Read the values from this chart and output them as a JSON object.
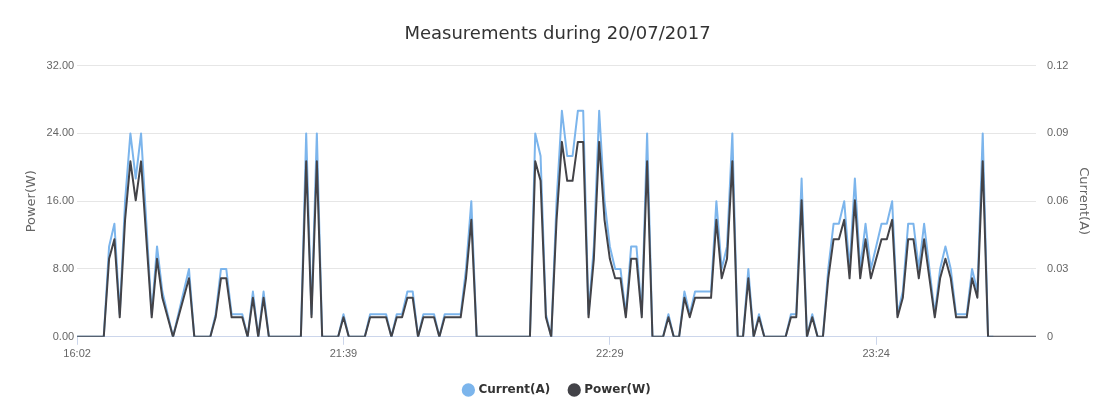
{
  "chart_data": {
    "type": "line",
    "title": "Measurements during 20/07/2017",
    "ylabel": "Power(W)",
    "y2label": "Current(A)",
    "categories": [
      "16:02",
      null,
      null,
      null,
      null,
      null,
      null,
      null,
      null,
      null,
      null,
      null,
      null,
      null,
      null,
      null,
      null,
      null,
      null,
      null,
      null,
      null,
      null,
      null,
      null,
      null,
      null,
      null,
      null,
      null,
      null,
      null,
      null,
      null,
      null,
      null,
      null,
      null,
      null,
      null,
      null,
      null,
      null,
      null,
      null,
      null,
      null,
      null,
      null,
      null,
      "21:39",
      null,
      null,
      null,
      null,
      null,
      null,
      null,
      null,
      null,
      null,
      null,
      null,
      null,
      null,
      null,
      null,
      null,
      null,
      null,
      null,
      null,
      null,
      null,
      null,
      null,
      null,
      null,
      null,
      null,
      null,
      null,
      null,
      null,
      null,
      null,
      null,
      null,
      null,
      null,
      null,
      null,
      null,
      null,
      null,
      null,
      null,
      null,
      null,
      null,
      "22:29",
      null,
      null,
      null,
      null,
      null,
      null,
      null,
      null,
      null,
      null,
      null,
      null,
      null,
      null,
      null,
      null,
      null,
      null,
      null,
      null,
      null,
      null,
      null,
      null,
      null,
      null,
      null,
      null,
      null,
      null,
      null,
      null,
      null,
      null,
      null,
      null,
      null,
      null,
      null,
      null,
      null,
      null,
      null,
      null,
      null,
      null,
      null,
      null,
      null,
      "23:24",
      null,
      null,
      null,
      null,
      null,
      null,
      null,
      null,
      null,
      null,
      null,
      null,
      null,
      null,
      null,
      null,
      null,
      null,
      null,
      null,
      null,
      null,
      null,
      null,
      null,
      null,
      null,
      null,
      null,
      null
    ],
    "series": [
      {
        "name": "Current(A)",
        "color": "#7cb5ec",
        "axis": "y2",
        "values": [
          0,
          0,
          0,
          0,
          0,
          0,
          0.04,
          0.05,
          0.01,
          0.06,
          0.09,
          0.07,
          0.09,
          0.05,
          0.01,
          0.04,
          0.02,
          0.01,
          0,
          0.01,
          0.02,
          0.03,
          0,
          0,
          0,
          0,
          0.01,
          0.03,
          0.03,
          0.01,
          0.01,
          0.01,
          0,
          0.02,
          0,
          0.02,
          0,
          0,
          0,
          0,
          0,
          0,
          0,
          0.09,
          0.01,
          0.09,
          0,
          0,
          0,
          0,
          0.01,
          0,
          0,
          0,
          0,
          0.01,
          0.01,
          0.01,
          0.01,
          0,
          0.01,
          0.01,
          0.02,
          0.02,
          0,
          0.01,
          0.01,
          0.01,
          0,
          0.01,
          0.01,
          0.01,
          0.01,
          0.03,
          0.06,
          0,
          0,
          0,
          0,
          0,
          0,
          0,
          0,
          0,
          0,
          0,
          0.09,
          0.08,
          0.01,
          0,
          0.06,
          0.1,
          0.08,
          0.08,
          0.1,
          0.1,
          0.01,
          0.04,
          0.1,
          0.06,
          0.04,
          0.03,
          0.03,
          0.01,
          0.04,
          0.04,
          0.01,
          0.09,
          0,
          0,
          0,
          0.01,
          0,
          0,
          0.02,
          0.01,
          0.02,
          0.02,
          0.02,
          0.02,
          0.06,
          0.03,
          0.04,
          0.09,
          0,
          0,
          0.03,
          0,
          0.01,
          0,
          0,
          0,
          0,
          0,
          0.01,
          0.01,
          0.07,
          0,
          0.01,
          0,
          0,
          0.03,
          0.05,
          0.05,
          0.06,
          0.03,
          0.07,
          0.03,
          0.05,
          0.03,
          0.04,
          0.05,
          0.05,
          0.06,
          0.01,
          0.02,
          0.05,
          0.05,
          0.03,
          0.05,
          0.03,
          0.01,
          0.03,
          0.04,
          0.03,
          0.01,
          0.01,
          0.01,
          0.03,
          0.02,
          0.09,
          0,
          0,
          null,
          null,
          null,
          null,
          null,
          null,
          null,
          null
        ]
      },
      {
        "name": "Power(W)",
        "color": "#434348",
        "values": [
          0,
          0,
          0,
          0,
          0,
          0,
          9.2,
          11.5,
          2.3,
          13.8,
          20.7,
          16.1,
          20.7,
          11.5,
          2.3,
          9.2,
          4.6,
          2.3,
          0,
          2.3,
          4.6,
          6.9,
          0,
          0,
          0,
          0,
          2.3,
          6.9,
          6.9,
          2.3,
          2.3,
          2.3,
          0,
          4.6,
          0,
          4.6,
          0,
          0,
          0,
          0,
          0,
          0,
          0,
          20.7,
          2.3,
          20.7,
          0,
          0,
          0,
          0,
          2.3,
          0,
          0,
          0,
          0,
          2.3,
          2.3,
          2.3,
          2.3,
          0,
          2.3,
          2.3,
          4.6,
          4.6,
          0,
          2.3,
          2.3,
          2.3,
          0,
          2.3,
          2.3,
          2.3,
          2.3,
          6.9,
          13.8,
          0,
          0,
          0,
          0,
          0,
          0,
          0,
          0,
          0,
          0,
          0,
          20.7,
          18.4,
          2.3,
          0,
          13.8,
          23,
          18.4,
          18.4,
          23,
          23,
          2.3,
          9.2,
          23,
          13.8,
          9.2,
          6.9,
          6.9,
          2.3,
          9.2,
          9.2,
          2.3,
          20.7,
          0,
          0,
          0,
          2.3,
          0,
          0,
          4.6,
          2.3,
          4.6,
          4.6,
          4.6,
          4.6,
          13.8,
          6.9,
          9.2,
          20.7,
          0,
          0,
          6.9,
          0,
          2.3,
          0,
          0,
          0,
          0,
          0,
          2.3,
          2.3,
          16.1,
          0,
          2.3,
          0,
          0,
          6.9,
          11.5,
          11.5,
          13.8,
          6.9,
          16.1,
          6.9,
          11.5,
          6.9,
          9.2,
          11.5,
          11.5,
          13.8,
          2.3,
          4.6,
          11.5,
          11.5,
          6.9,
          11.5,
          6.9,
          2.3,
          6.9,
          9.2,
          6.9,
          2.3,
          2.3,
          2.3,
          6.9,
          4.6,
          20.7,
          0,
          0,
          0,
          0,
          0,
          0,
          0,
          0,
          0,
          0
        ]
      }
    ],
    "ylim": [
      0,
      32
    ],
    "yticks": [
      {
        "value": 0,
        "label": "0.00"
      },
      {
        "value": 8,
        "label": "8.00"
      },
      {
        "value": 16,
        "label": "16.00"
      },
      {
        "value": 24,
        "label": "24.00"
      },
      {
        "value": 32,
        "label": "32.00"
      }
    ],
    "y2lim": [
      0,
      0.12
    ],
    "y2ticks": [
      0,
      0.03,
      0.06,
      0.09,
      0.12
    ],
    "grid": "y",
    "legend": "bottom"
  }
}
